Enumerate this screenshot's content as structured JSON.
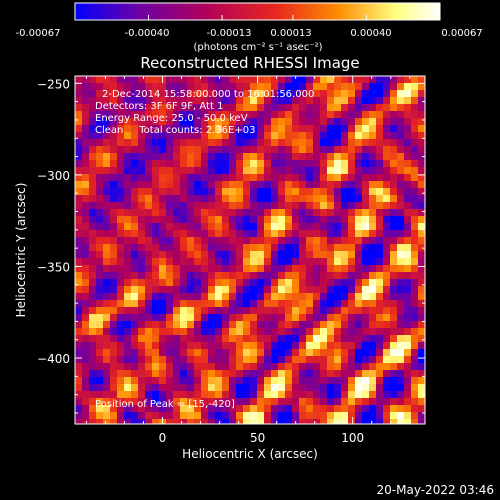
{
  "chart_data": {
    "type": "heatmap",
    "title": "Reconstructed RHESSI Image",
    "colorbar": {
      "tick_labels": [
        "-0.00067",
        "-0.00040",
        "-0.00013",
        "0.00013",
        "0.00040",
        "0.00067"
      ],
      "range": [
        -0.00067,
        0.00067
      ],
      "unit_text": "(photons cm⁻² s⁻¹ asec⁻²)",
      "colormap": [
        "#0000ff",
        "#6a00a8",
        "#b0005a",
        "#e8281e",
        "#ff8c00",
        "#ffff80",
        "#ffffff"
      ]
    },
    "xlabel": "Heliocentric X (arcsec)",
    "ylabel": "Heliocentric Y (arcsec)",
    "xlim": [
      -46,
      138
    ],
    "ylim": [
      -436,
      -246
    ],
    "xticks": [
      0,
      50,
      100
    ],
    "yticks": [
      -250,
      -300,
      -350,
      -400
    ],
    "annotations": [
      "2-Dec-2014 15:58:00.000 to 16:01:56.000",
      "Detectors: 3F 6F 9F, Att 1",
      "Energy Range: 25.0 - 50.0 keV",
      "Clean     Total counts: 2.36E+03",
      "Position of Peak = [15,-420]"
    ]
  },
  "footer": {
    "timestamp": "20-May-2022 03:46"
  }
}
